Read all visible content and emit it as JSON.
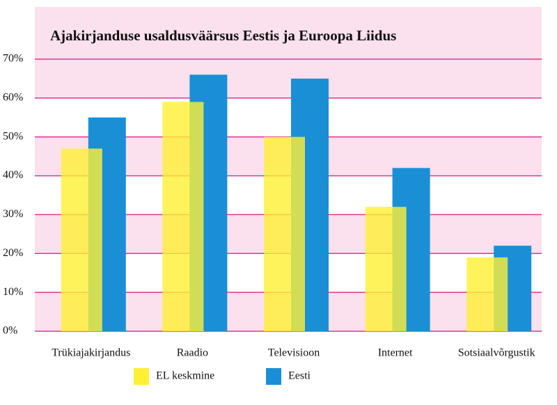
{
  "chart_data": {
    "type": "bar",
    "title": "Ajakirjanduse usaldusväärsus Eestis ja Euroopa Liidus",
    "categories": [
      "Trükiajakirjandus",
      "Raadio",
      "Televisioon",
      "Internet",
      "Sotsiaalvõrgustik"
    ],
    "series": [
      {
        "name": "EL keskmine",
        "color": "#fff033",
        "values": [
          47,
          59,
          50,
          32,
          19
        ]
      },
      {
        "name": "Eesti",
        "color": "#1a8fd6",
        "values": [
          55,
          66,
          65,
          42,
          22
        ]
      }
    ],
    "ylim": [
      0,
      70
    ],
    "yticks": [
      {
        "value": 0,
        "label": "0%"
      },
      {
        "value": 10,
        "label": "10%"
      },
      {
        "value": 20,
        "label": "20%"
      },
      {
        "value": 30,
        "label": "30%"
      },
      {
        "value": 40,
        "label": "40%"
      },
      {
        "value": 50,
        "label": "50%"
      },
      {
        "value": 60,
        "label": "60%"
      },
      {
        "value": 70,
        "label": "70%"
      }
    ],
    "grid": true,
    "band_color": "#fbe0ee",
    "grid_color": "#e3338f"
  }
}
